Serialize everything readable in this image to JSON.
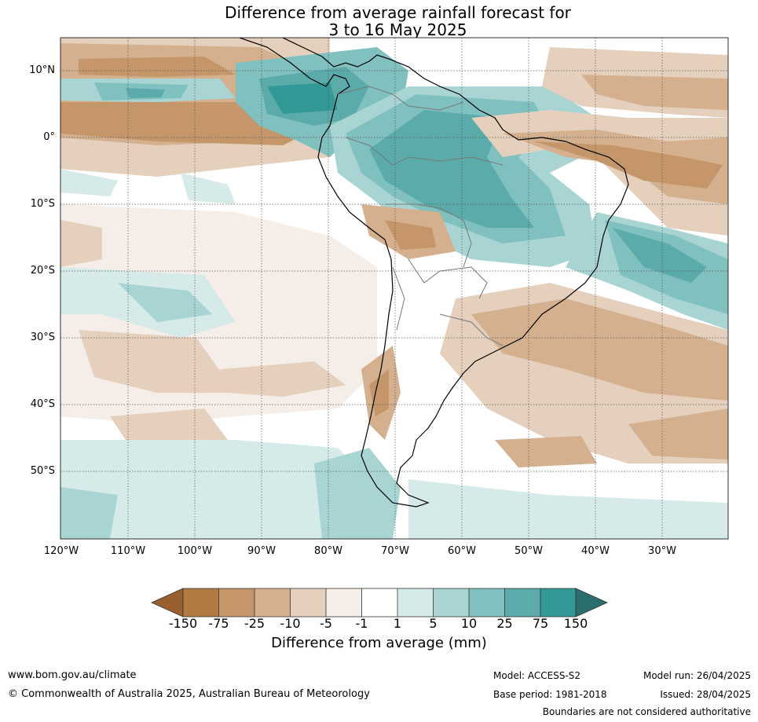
{
  "title": {
    "line1": "Difference from average rainfall forecast for",
    "line2": "3 to 16 May 2025"
  },
  "map": {
    "latitude_labels": [
      "10°N",
      "0°",
      "10°S",
      "20°S",
      "30°S",
      "40°S",
      "50°S"
    ],
    "longitude_labels": [
      "120°W",
      "110°W",
      "100°W",
      "90°W",
      "80°W",
      "70°W",
      "60°W",
      "50°W",
      "40°W",
      "30°W"
    ]
  },
  "legend": {
    "title": "Difference from average (mm)",
    "ticks": [
      "-150",
      "-75",
      "-25",
      "-10",
      "-5",
      "-1",
      "1",
      "5",
      "10",
      "25",
      "75",
      "150"
    ],
    "colors": [
      "#9a5f2e",
      "#b07a41",
      "#c4966a",
      "#d4b08e",
      "#e5d0bd",
      "#f5ede7",
      "#ffffff",
      "#d6ebe9",
      "#a8d5d3",
      "#80c0bf",
      "#5aabaa",
      "#329996",
      "#2a6f6e"
    ]
  },
  "footer": {
    "website": "www.bom.gov.au/climate",
    "copyright": "© Commonwealth of Australia 2025, Australian Bureau of Meteorology",
    "model": "Model: ACCESS-S2",
    "base_period": "Base period: 1981-2018",
    "model_run": "Model run: 26/04/2025",
    "issued": "Issued: 28/04/2025",
    "disclaimer": "Boundaries are not considered authoritative"
  }
}
